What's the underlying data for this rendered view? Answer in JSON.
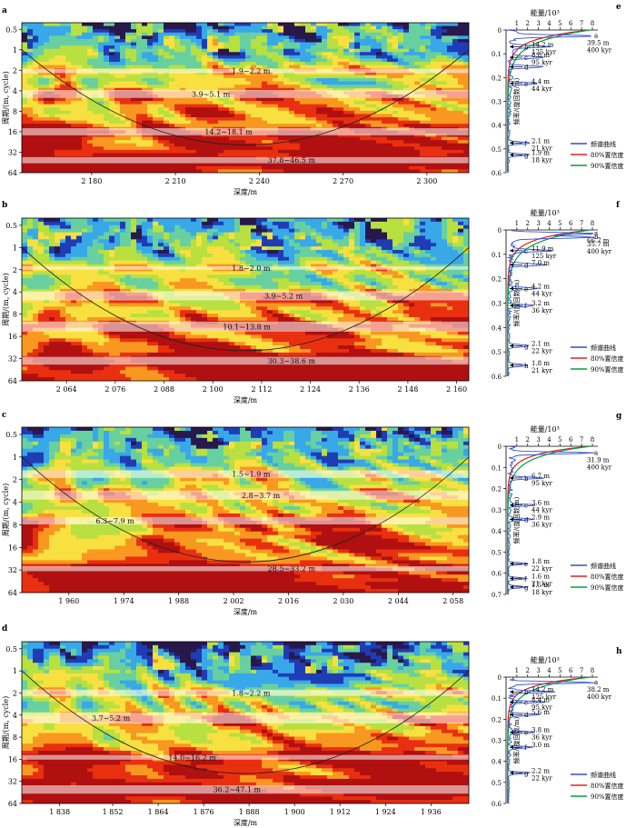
{
  "chart_data": [
    {
      "panel_label": "a",
      "type": "heatmap",
      "xlabel": "深度/m",
      "ylabel": "周期/(m, cycle)",
      "xlim": [
        2155,
        2315
      ],
      "x_ticks": [
        2180,
        2210,
        2240,
        2270,
        2300
      ],
      "x_tick_labels": [
        "2 180",
        "2 210",
        "2 240",
        "2 270",
        "2 300"
      ],
      "y_ticks": [
        0.5,
        1,
        2,
        4,
        8,
        16,
        32,
        64
      ],
      "y_tick_labels": [
        "0.5",
        "1",
        "2",
        "4",
        "8",
        "16",
        "32",
        "64"
      ],
      "ylim": [
        0.4,
        64
      ],
      "y_scale": "log2",
      "bands": [
        {
          "label": "1.9~2.2 m",
          "low": 1.9,
          "high": 2.2
        },
        {
          "label": "3.9~5.1 m",
          "low": 3.9,
          "high": 5.1
        },
        {
          "label": "14.2~18.1 m",
          "low": 14.2,
          "high": 18.1
        },
        {
          "label": "37.8~46.5 m",
          "low": 37.8,
          "high": 46.5
        }
      ]
    },
    {
      "panel_label": "b",
      "type": "heatmap",
      "xlabel": "深度/m",
      "ylabel": "周期/(m, cycle)",
      "xlim": [
        2053,
        2163
      ],
      "x_ticks": [
        2064,
        2076,
        2088,
        2100,
        2112,
        2124,
        2136,
        2148,
        2160
      ],
      "x_tick_labels": [
        "2 064",
        "2 076",
        "2 088",
        "2 100",
        "2 112",
        "2 124",
        "2 136",
        "2 148",
        "2 160"
      ],
      "y_ticks": [
        0.5,
        1,
        2,
        4,
        8,
        16,
        32,
        64
      ],
      "y_tick_labels": [
        "0.5",
        "1",
        "2",
        "4",
        "8",
        "16",
        "32",
        "64"
      ],
      "ylim": [
        0.4,
        64
      ],
      "y_scale": "log2",
      "bands": [
        {
          "label": "1.8~2.0 m",
          "low": 1.8,
          "high": 2.0
        },
        {
          "label": "3.9~5.2 m",
          "low": 3.9,
          "high": 5.2
        },
        {
          "label": "10.1~13.8 m",
          "low": 10.1,
          "high": 13.8
        },
        {
          "label": "30.3~38.6 m",
          "low": 30.3,
          "high": 38.6
        }
      ]
    },
    {
      "panel_label": "c",
      "type": "heatmap",
      "xlabel": "深度/m",
      "ylabel": "周期/(m, cycle)",
      "xlim": [
        1948,
        2062
      ],
      "x_ticks": [
        1960,
        1974,
        1988,
        2002,
        2016,
        2030,
        2044,
        2058
      ],
      "x_tick_labels": [
        "1 960",
        "1 974",
        "1 988",
        "2 002",
        "2 016",
        "2 030",
        "2 044",
        "2 058"
      ],
      "y_ticks": [
        0.5,
        1,
        2,
        4,
        8,
        16,
        32,
        64
      ],
      "y_tick_labels": [
        "0.5",
        "1",
        "2",
        "4",
        "8",
        "16",
        "32",
        "64"
      ],
      "ylim": [
        0.4,
        64
      ],
      "y_scale": "log2",
      "bands": [
        {
          "label": "1.5~1.9 m",
          "low": 1.5,
          "high": 1.9
        },
        {
          "label": "2.8~3.7 m",
          "low": 2.8,
          "high": 3.7
        },
        {
          "label": "6.3~7.9 m",
          "low": 6.3,
          "high": 7.9
        },
        {
          "label": "28.5~33.2 m",
          "low": 28.5,
          "high": 33.2
        }
      ]
    },
    {
      "panel_label": "d",
      "type": "heatmap",
      "xlabel": "深度/m",
      "ylabel": "周期/(m, cycle)",
      "xlim": [
        1828,
        1946
      ],
      "x_ticks": [
        1838,
        1852,
        1864,
        1876,
        1888,
        1900,
        1912,
        1924,
        1936
      ],
      "x_tick_labels": [
        "1 838",
        "1 852",
        "1 864",
        "1 876",
        "1 888",
        "1 900",
        "1 912",
        "1 924",
        "1 936"
      ],
      "y_ticks": [
        0.5,
        1,
        2,
        4,
        8,
        16,
        32,
        64
      ],
      "y_tick_labels": [
        "0.5",
        "1",
        "2",
        "4",
        "8",
        "16",
        "32",
        "64"
      ],
      "ylim": [
        0.4,
        64
      ],
      "y_scale": "log2",
      "bands": [
        {
          "label": "1.8~2.2 m",
          "low": 1.8,
          "high": 2.2
        },
        {
          "label": "3.7~5.2 m",
          "low": 3.7,
          "high": 5.2
        },
        {
          "label": "14.0~16.2 m",
          "low": 14.0,
          "high": 16.2
        },
        {
          "label": "36.2~47.1 m",
          "low": 36.2,
          "high": 47.1
        }
      ]
    },
    {
      "panel_label": "e",
      "type": "line",
      "xlabel": "能量/10³",
      "ylabel": "频率/(旋回数/m)",
      "xlim": [
        0,
        8
      ],
      "ylim": [
        0,
        0.6
      ],
      "x_ticks": [
        1,
        2,
        3,
        4,
        5,
        6,
        7,
        8
      ],
      "y_ticks": [
        0,
        0.1,
        0.2,
        0.3,
        0.4,
        0.5,
        0.6
      ],
      "legend": [
        "频谱曲线",
        "80%置信度",
        "90%置信度"
      ],
      "peaks": [
        {
          "letter": "a",
          "freq": 0.025,
          "label": "39.5 m\n400 kyr",
          "side": "right"
        },
        {
          "letter": "b",
          "freq": 0.07,
          "label": "14.2 m\n125 kyr",
          "side": "left"
        },
        {
          "letter": "c",
          "freq": 0.115,
          "label": "8.8 m\n95 kyr",
          "side": "left"
        },
        {
          "letter": "d",
          "freq": 0.155,
          "label": "",
          "side": "left"
        },
        {
          "letter": "e",
          "freq": 0.225,
          "label": "4.4 m\n44 kyr",
          "side": "left"
        },
        {
          "letter": "f",
          "freq": 0.475,
          "label": "2.1 m\n21 kyr",
          "side": "left"
        },
        {
          "letter": "g",
          "freq": 0.525,
          "label": "1.9 m\n18 kyr",
          "side": "left"
        }
      ]
    },
    {
      "panel_label": "f",
      "type": "line",
      "xlabel": "能量/10³",
      "ylabel": "频率/(旋回数/m)",
      "xlim": [
        0,
        8
      ],
      "ylim": [
        0,
        0.6
      ],
      "x_ticks": [
        1,
        2,
        3,
        4,
        5,
        6,
        7,
        8
      ],
      "y_ticks": [
        0,
        0.1,
        0.2,
        0.3,
        0.4,
        0.5,
        0.6
      ],
      "legend": [
        "频谱曲线",
        "80%置信度",
        "90%置信度"
      ],
      "peaks": [
        {
          "letter": "a",
          "freq": 0.015,
          "label": "66.7 m",
          "side": "right"
        },
        {
          "letter": "b",
          "freq": 0.03,
          "label": "35.7 m\n400 kyr",
          "side": "right"
        },
        {
          "letter": "c",
          "freq": 0.085,
          "label": "11.9 m\n125 kyr",
          "side": "left"
        },
        {
          "letter": "d",
          "freq": 0.143,
          "label": "7.0 m",
          "side": "left"
        },
        {
          "letter": "e",
          "freq": 0.24,
          "label": "4.2 m\n44 kyr",
          "side": "left"
        },
        {
          "letter": "f",
          "freq": 0.31,
          "label": "3.2 m\n36 kyr",
          "side": "left"
        },
        {
          "letter": "g",
          "freq": 0.475,
          "label": "2.1 m\n22 kyr",
          "side": "left"
        },
        {
          "letter": "h",
          "freq": 0.555,
          "label": "1.8 m\n21 kyr",
          "side": "left"
        }
      ]
    },
    {
      "panel_label": "g",
      "type": "line",
      "xlabel": "能量/10³",
      "ylabel": "频率/(旋回数/m)",
      "xlim": [
        0,
        8
      ],
      "ylim": [
        0,
        0.7
      ],
      "x_ticks": [
        1,
        2,
        3,
        4,
        5,
        6,
        7,
        8
      ],
      "y_ticks": [
        0,
        0.1,
        0.2,
        0.3,
        0.4,
        0.5,
        0.6,
        0.7
      ],
      "legend": [
        "频谱曲线",
        "80%置信度",
        "90%置信度"
      ],
      "peaks": [
        {
          "letter": "a",
          "freq": 0.032,
          "label": "31.9 m\n400 kyr",
          "side": "right"
        },
        {
          "letter": "b",
          "freq": 0.15,
          "label": "6.7 m\n95 kyr",
          "side": "left"
        },
        {
          "letter": "c",
          "freq": 0.278,
          "label": "3.6 m\n44 kyr",
          "side": "left"
        },
        {
          "letter": "d",
          "freq": 0.345,
          "label": "2.9 m\n36 kyr",
          "side": "left"
        },
        {
          "letter": "e",
          "freq": 0.555,
          "label": "1.8 m\n22 kyr",
          "side": "left"
        },
        {
          "letter": "f",
          "freq": 0.625,
          "label": "1.6 m\n21 kyr",
          "side": "left"
        },
        {
          "letter": "g",
          "freq": 0.665,
          "label": "1.5 m\n18 kyr",
          "side": "left"
        }
      ]
    },
    {
      "panel_label": "h",
      "type": "line",
      "xlabel": "能量/10³",
      "ylabel": "频率/(旋回数/m)",
      "xlim": [
        0,
        8
      ],
      "ylim": [
        0,
        0.6
      ],
      "x_ticks": [
        1,
        2,
        3,
        4,
        5,
        6,
        7,
        8
      ],
      "y_ticks": [
        0,
        0.1,
        0.2,
        0.3,
        0.4,
        0.5,
        0.6
      ],
      "legend": [
        "频谱曲线",
        "80%置信度",
        "90%置信度"
      ],
      "peaks": [
        {
          "letter": "a",
          "freq": 0.026,
          "label": "38.2 m\n400 kyr",
          "side": "right"
        },
        {
          "letter": "b",
          "freq": 0.07,
          "label": "14.2 m\n125 kyr",
          "side": "left"
        },
        {
          "letter": "c",
          "freq": 0.118,
          "label": "8.4 m\n95 kyr",
          "side": "left"
        },
        {
          "letter": "d",
          "freq": 0.178,
          "label": "5.6 m",
          "side": "left"
        },
        {
          "letter": "e",
          "freq": 0.262,
          "label": "3.8 m\n36 kyr",
          "side": "left"
        },
        {
          "letter": "f",
          "freq": 0.333,
          "label": "3.0 m",
          "side": "left"
        },
        {
          "letter": "g",
          "freq": 0.455,
          "label": "2.2 m\n22 kyr",
          "side": "left"
        }
      ]
    }
  ],
  "colors": {
    "spectrum": "#3050c8",
    "conf80": "#e02020",
    "conf90": "#00a040",
    "heat_scale": [
      "#28184c",
      "#203cb4",
      "#38a8e8",
      "#68d0a0",
      "#b8e040",
      "#f8e040",
      "#f89820",
      "#e83010",
      "#b01010"
    ]
  }
}
